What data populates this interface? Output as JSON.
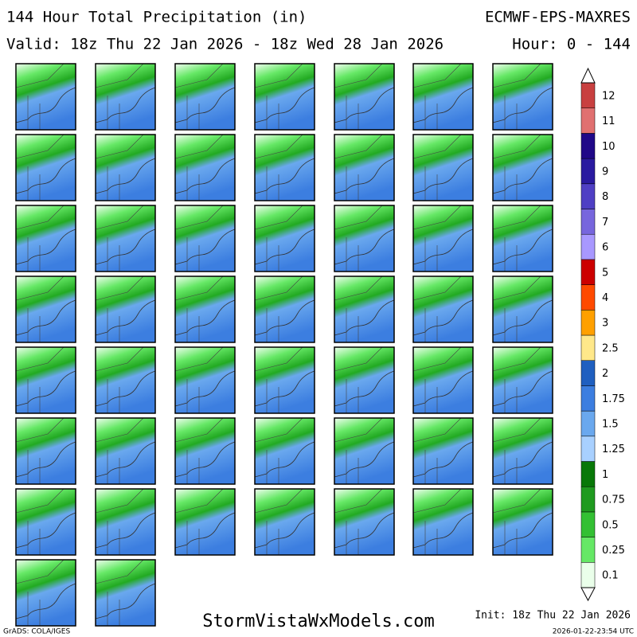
{
  "header": {
    "title": "144 Hour Total Precipitation (in)",
    "model": "ECMWF-EPS-MAXRES",
    "valid": "Valid: 18z Thu 22 Jan 2026 - 18z Wed 28 Jan 2026",
    "hours": "Hour: 0 - 144"
  },
  "colorbar": {
    "levels": [
      {
        "label": "0.1",
        "color": "#eaffea"
      },
      {
        "label": "0.25",
        "color": "#66e866"
      },
      {
        "label": "0.5",
        "color": "#33c033"
      },
      {
        "label": "0.75",
        "color": "#1f9a1f"
      },
      {
        "label": "1",
        "color": "#087808"
      },
      {
        "label": "1.25",
        "color": "#a8d0ff"
      },
      {
        "label": "1.5",
        "color": "#6aa8ee"
      },
      {
        "label": "1.75",
        "color": "#3c7ee0"
      },
      {
        "label": "2",
        "color": "#1f5fc0"
      },
      {
        "label": "2.5",
        "color": "#ffe88a"
      },
      {
        "label": "3",
        "color": "#ffa000"
      },
      {
        "label": "4",
        "color": "#ff4a00"
      },
      {
        "label": "5",
        "color": "#cc0000"
      },
      {
        "label": "6",
        "color": "#a898ff"
      },
      {
        "label": "7",
        "color": "#7766dd"
      },
      {
        "label": "8",
        "color": "#4f3fc4"
      },
      {
        "label": "9",
        "color": "#2a1aa0"
      },
      {
        "label": "10",
        "color": "#200888"
      },
      {
        "label": "11",
        "color": "#e07070"
      },
      {
        "label": "12",
        "color": "#c84040"
      }
    ]
  },
  "footer": {
    "site": "StormVistaWxModels.com",
    "init": "Init: 18z Thu 22 Jan 2026",
    "credit": "GrADS: COLA/IGES",
    "timestamp": "2026-01-22-23:54 UTC"
  }
}
